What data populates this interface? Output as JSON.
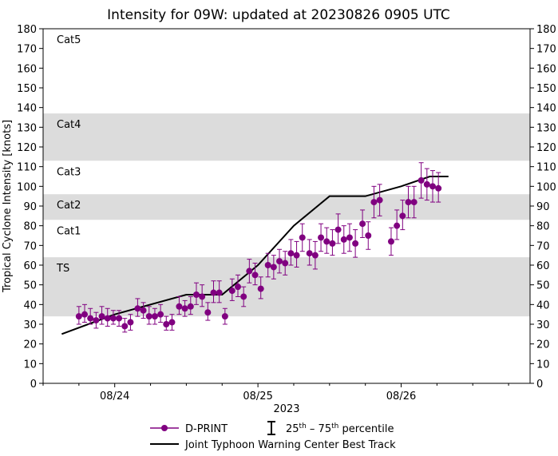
{
  "chart_data": {
    "type": "scatter",
    "title": "Intensity for 09W: updated at 20230826 0905 UTC",
    "xlabel": "2023",
    "ylabel": "Tropical Cyclone Intensity [knots]",
    "ylim": [
      0,
      180
    ],
    "yticks": [
      0,
      10,
      20,
      30,
      40,
      50,
      60,
      70,
      80,
      90,
      100,
      110,
      120,
      130,
      140,
      150,
      160,
      170,
      180
    ],
    "xlim_days": [
      23.5,
      26.9
    ],
    "xticks": [
      {
        "day": 24,
        "label": "08/24"
      },
      {
        "day": 25,
        "label": "08/25"
      },
      {
        "day": 26,
        "label": "08/26"
      }
    ],
    "bands": [
      {
        "label": "TS",
        "from": 34,
        "to": 64,
        "shaded": true
      },
      {
        "label": "Cat1",
        "from": 64,
        "to": 83,
        "shaded": false
      },
      {
        "label": "Cat2",
        "from": 83,
        "to": 96,
        "shaded": true
      },
      {
        "label": "Cat3",
        "from": 96,
        "to": 113,
        "shaded": false
      },
      {
        "label": "Cat4",
        "from": 113,
        "to": 137,
        "shaded": true
      },
      {
        "label": "Cat5",
        "from": 137,
        "to": 180,
        "shaded": false
      }
    ],
    "series": [
      {
        "name": "D-PRINT",
        "color": "#800080",
        "marker": "circle",
        "points": [
          {
            "x": 23.75,
            "y": 34,
            "lo": 30,
            "hi": 39
          },
          {
            "x": 23.79,
            "y": 35,
            "lo": 31,
            "hi": 40
          },
          {
            "x": 23.83,
            "y": 33,
            "lo": 30,
            "hi": 38
          },
          {
            "x": 23.87,
            "y": 32,
            "lo": 28,
            "hi": 36
          },
          {
            "x": 23.91,
            "y": 34,
            "lo": 30,
            "hi": 39
          },
          {
            "x": 23.95,
            "y": 33,
            "lo": 29,
            "hi": 38
          },
          {
            "x": 23.99,
            "y": 33,
            "lo": 30,
            "hi": 37
          },
          {
            "x": 24.03,
            "y": 33,
            "lo": 29,
            "hi": 37
          },
          {
            "x": 24.07,
            "y": 29,
            "lo": 26,
            "hi": 33
          },
          {
            "x": 24.11,
            "y": 31,
            "lo": 27,
            "hi": 35
          },
          {
            "x": 24.16,
            "y": 38,
            "lo": 34,
            "hi": 43
          },
          {
            "x": 24.2,
            "y": 37,
            "lo": 33,
            "hi": 41
          },
          {
            "x": 24.24,
            "y": 34,
            "lo": 30,
            "hi": 39
          },
          {
            "x": 24.28,
            "y": 34,
            "lo": 30,
            "hi": 38
          },
          {
            "x": 24.32,
            "y": 35,
            "lo": 31,
            "hi": 40
          },
          {
            "x": 24.36,
            "y": 30,
            "lo": 27,
            "hi": 34
          },
          {
            "x": 24.4,
            "y": 31,
            "lo": 27,
            "hi": 35
          },
          {
            "x": 24.45,
            "y": 39,
            "lo": 35,
            "hi": 44
          },
          {
            "x": 24.49,
            "y": 38,
            "lo": 34,
            "hi": 42
          },
          {
            "x": 24.53,
            "y": 39,
            "lo": 35,
            "hi": 44
          },
          {
            "x": 24.57,
            "y": 45,
            "lo": 40,
            "hi": 51
          },
          {
            "x": 24.61,
            "y": 44,
            "lo": 39,
            "hi": 50
          },
          {
            "x": 24.65,
            "y": 36,
            "lo": 32,
            "hi": 41
          },
          {
            "x": 24.69,
            "y": 46,
            "lo": 41,
            "hi": 52
          },
          {
            "x": 24.73,
            "y": 46,
            "lo": 41,
            "hi": 52
          },
          {
            "x": 24.77,
            "y": 34,
            "lo": 30,
            "hi": 38
          },
          {
            "x": 24.82,
            "y": 47,
            "lo": 42,
            "hi": 53
          },
          {
            "x": 24.86,
            "y": 49,
            "lo": 44,
            "hi": 55
          },
          {
            "x": 24.9,
            "y": 44,
            "lo": 39,
            "hi": 49
          },
          {
            "x": 24.94,
            "y": 57,
            "lo": 51,
            "hi": 63
          },
          {
            "x": 24.98,
            "y": 55,
            "lo": 50,
            "hi": 61
          },
          {
            "x": 25.02,
            "y": 48,
            "lo": 43,
            "hi": 54
          },
          {
            "x": 25.07,
            "y": 60,
            "lo": 54,
            "hi": 66
          },
          {
            "x": 25.11,
            "y": 59,
            "lo": 53,
            "hi": 65
          },
          {
            "x": 25.15,
            "y": 62,
            "lo": 56,
            "hi": 68
          },
          {
            "x": 25.19,
            "y": 61,
            "lo": 55,
            "hi": 67
          },
          {
            "x": 25.23,
            "y": 66,
            "lo": 60,
            "hi": 73
          },
          {
            "x": 25.27,
            "y": 65,
            "lo": 59,
            "hi": 72
          },
          {
            "x": 25.31,
            "y": 74,
            "lo": 67,
            "hi": 81
          },
          {
            "x": 25.36,
            "y": 66,
            "lo": 60,
            "hi": 73
          },
          {
            "x": 25.4,
            "y": 65,
            "lo": 58,
            "hi": 72
          },
          {
            "x": 25.44,
            "y": 74,
            "lo": 67,
            "hi": 81
          },
          {
            "x": 25.48,
            "y": 72,
            "lo": 66,
            "hi": 79
          },
          {
            "x": 25.52,
            "y": 71,
            "lo": 65,
            "hi": 78
          },
          {
            "x": 25.56,
            "y": 78,
            "lo": 71,
            "hi": 86
          },
          {
            "x": 25.6,
            "y": 73,
            "lo": 66,
            "hi": 80
          },
          {
            "x": 25.64,
            "y": 74,
            "lo": 67,
            "hi": 81
          },
          {
            "x": 25.68,
            "y": 71,
            "lo": 64,
            "hi": 78
          },
          {
            "x": 25.73,
            "y": 81,
            "lo": 74,
            "hi": 88
          },
          {
            "x": 25.77,
            "y": 75,
            "lo": 68,
            "hi": 82
          },
          {
            "x": 25.81,
            "y": 92,
            "lo": 84,
            "hi": 100
          },
          {
            "x": 25.85,
            "y": 93,
            "lo": 85,
            "hi": 101
          },
          {
            "x": 25.93,
            "y": 72,
            "lo": 65,
            "hi": 79
          },
          {
            "x": 25.97,
            "y": 80,
            "lo": 73,
            "hi": 88
          },
          {
            "x": 26.01,
            "y": 85,
            "lo": 78,
            "hi": 93
          },
          {
            "x": 26.05,
            "y": 92,
            "lo": 84,
            "hi": 100
          },
          {
            "x": 26.09,
            "y": 92,
            "lo": 84,
            "hi": 100
          },
          {
            "x": 26.14,
            "y": 103,
            "lo": 94,
            "hi": 112
          },
          {
            "x": 26.18,
            "y": 101,
            "lo": 93,
            "hi": 109
          },
          {
            "x": 26.22,
            "y": 100,
            "lo": 92,
            "hi": 108
          },
          {
            "x": 26.26,
            "y": 99,
            "lo": 92,
            "hi": 107
          }
        ]
      },
      {
        "name": "Joint Typhoon Warning Center Best Track",
        "color": "#000000",
        "x": [
          23.63,
          24.0,
          24.5,
          24.75,
          25.0,
          25.25,
          25.5,
          25.75,
          26.0,
          26.2,
          26.33
        ],
        "y": [
          25,
          35,
          45,
          45,
          60,
          80,
          95,
          95,
          100,
          105,
          105
        ]
      }
    ],
    "legend": {
      "placement": "bottom-center",
      "dprint_label": "D-PRINT",
      "percentile_label_prefix": "25",
      "percentile_sup1": "th",
      "percentile_dash": " – 75",
      "percentile_sup2": "th",
      "percentile_label_suffix": " percentile",
      "best_track_label": "Joint Typhoon Warning Center Best Track"
    }
  }
}
